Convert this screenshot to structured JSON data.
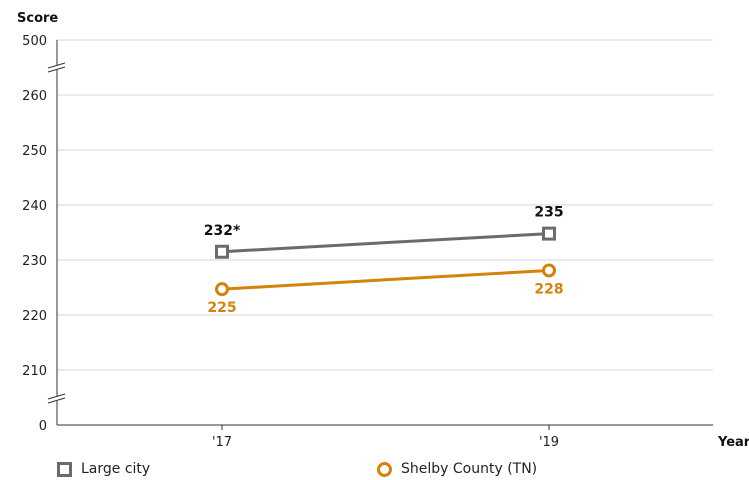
{
  "colors": {
    "large_city": "#6b6b6b",
    "shelby": "#d4830a",
    "grid": "#d6d6d6"
  },
  "chart_data": {
    "type": "line",
    "ylabel": "Score",
    "xlabel": "Year",
    "ylim": [
      200,
      270
    ],
    "axis_break": {
      "top_label": "500",
      "bottom_label": "0"
    },
    "categories": [
      "'17",
      "'19"
    ],
    "yticks": [
      210,
      220,
      230,
      240,
      250,
      260
    ],
    "grid": true,
    "legend_position": "bottom",
    "series": [
      {
        "name": "Large city",
        "marker": "square",
        "values": [
          231.5,
          234.8
        ],
        "labels": [
          "232*",
          "235"
        ]
      },
      {
        "name": "Shelby County (TN)",
        "marker": "circle",
        "values": [
          224.7,
          228.1
        ],
        "labels": [
          "225",
          "228"
        ]
      }
    ]
  }
}
